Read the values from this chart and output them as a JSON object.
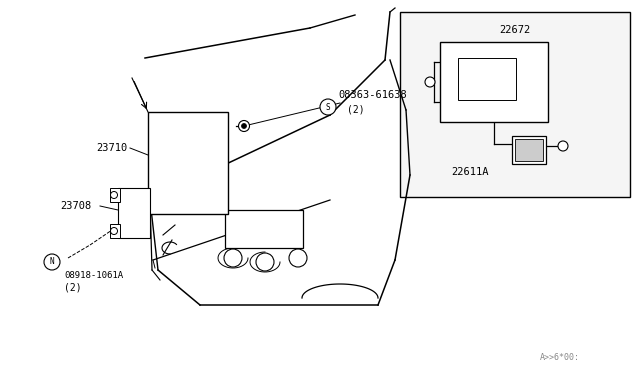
{
  "bg_color": "#ffffff",
  "line_color": "#000000",
  "footer": "A>>6*00:",
  "labels": {
    "23710": [
      0.155,
      0.415
    ],
    "23708": [
      0.108,
      0.562
    ],
    "bolt_label": "08363-61638",
    "bolt_label2": "(2)",
    "screw_label": "08918-1061A",
    "screw_label2": "(2)",
    "inset_top": "22672",
    "inset_bot": "22611A"
  }
}
